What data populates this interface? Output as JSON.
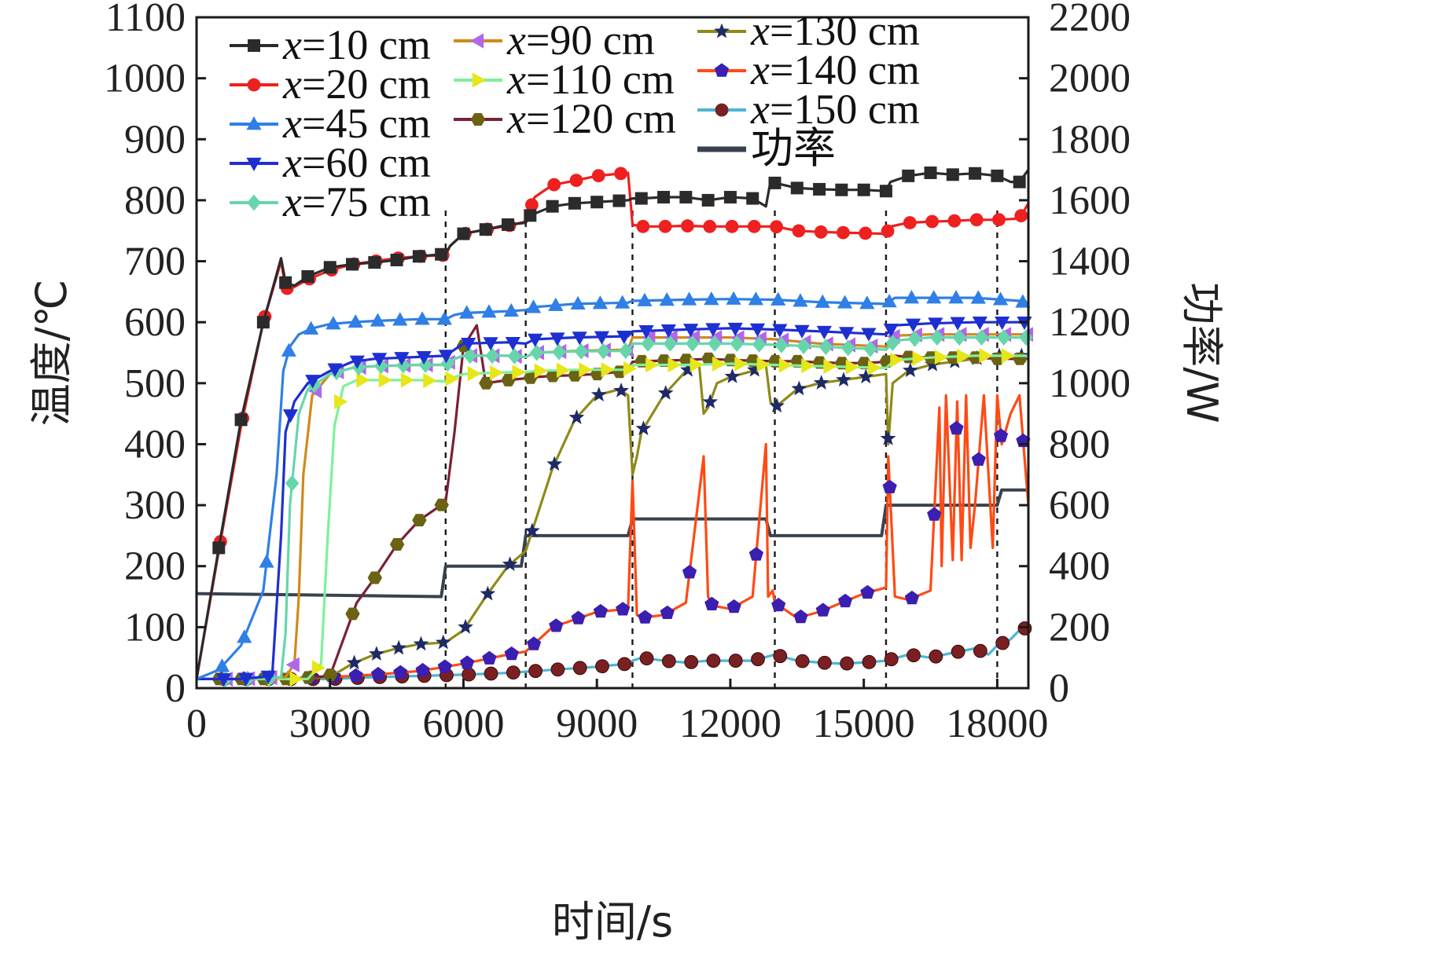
{
  "chart_data": {
    "type": "line",
    "xlabel": "时间/s",
    "ylabel": "温度/℃",
    "y2label": "功率/W",
    "xlim": [
      0,
      18700
    ],
    "ylim": [
      0,
      1100
    ],
    "y2lim": [
      0,
      2200
    ],
    "xticks": [
      "0",
      "3000",
      "6000",
      "9000",
      "12000",
      "15000",
      "18000"
    ],
    "xtick_values": [
      0,
      3000,
      6000,
      9000,
      12000,
      15000,
      18000
    ],
    "yticks": [
      "0",
      "100",
      "200",
      "300",
      "400",
      "500",
      "600",
      "700",
      "800",
      "900",
      "1000",
      "1100"
    ],
    "ytick_values": [
      0,
      100,
      200,
      300,
      400,
      500,
      600,
      700,
      800,
      900,
      1000,
      1100
    ],
    "y2ticks": [
      "0",
      "200",
      "400",
      "600",
      "800",
      "1000",
      "1200",
      "1400",
      "1600",
      "1800",
      "2000",
      "2200"
    ],
    "y2tick_values": [
      0,
      200,
      400,
      600,
      800,
      1000,
      1200,
      1400,
      1600,
      1800,
      2000,
      2200
    ],
    "grid": false,
    "legend_position": "top",
    "vlines": [
      5600,
      7400,
      9800,
      13000,
      15500,
      18000
    ],
    "series": [
      {
        "name": "x=10 cm",
        "prefix": "x",
        "suffix": "=10 cm",
        "axis": "left",
        "color": "#2b2b2b",
        "marker": "square",
        "x": [
          0,
          500,
          1000,
          1500,
          1900,
          2000,
          2200,
          2500,
          3000,
          3500,
          4000,
          4500,
          5000,
          5600,
          5700,
          6000,
          6500,
          7000,
          7400,
          7500,
          8000,
          8500,
          9000,
          9700,
          9800,
          10000,
          10500,
          11000,
          11500,
          12000,
          12500,
          12800,
          12900,
          13500,
          14000,
          14500,
          15000,
          15500,
          15600,
          16000,
          16500,
          17000,
          17500,
          18000,
          18300,
          18500,
          18700
        ],
        "y": [
          15,
          230,
          440,
          600,
          705,
          665,
          660,
          675,
          690,
          695,
          698,
          702,
          708,
          712,
          725,
          745,
          752,
          760,
          763,
          775,
          790,
          795,
          797,
          800,
          803,
          803,
          805,
          805,
          800,
          805,
          803,
          790,
          830,
          820,
          818,
          817,
          817,
          815,
          830,
          840,
          845,
          842,
          844,
          840,
          830,
          830,
          850
        ]
      },
      {
        "name": "x=20 cm",
        "prefix": "x",
        "suffix": "=20 cm",
        "axis": "left",
        "color": "#ee2020",
        "marker": "circle",
        "x": [
          0,
          500,
          1000,
          1500,
          1900,
          2000,
          2200,
          2500,
          3000,
          3500,
          4000,
          4500,
          5000,
          5600,
          5700,
          6000,
          6500,
          7000,
          7400,
          7600,
          8000,
          8500,
          9000,
          9700,
          9800,
          10000,
          10500,
          11000,
          11500,
          12000,
          12500,
          13000,
          13500,
          14000,
          14500,
          15000,
          15500,
          15600,
          16000,
          16500,
          17000,
          17500,
          18000,
          18500,
          18700
        ],
        "y": [
          15,
          225,
          430,
          600,
          700,
          655,
          658,
          670,
          685,
          695,
          700,
          705,
          708,
          710,
          725,
          745,
          752,
          758,
          765,
          805,
          825,
          832,
          840,
          845,
          760,
          757,
          757,
          758,
          757,
          757,
          757,
          757,
          750,
          748,
          747,
          746,
          745,
          757,
          763,
          765,
          766,
          768,
          768,
          770,
          795
        ]
      },
      {
        "name": "x=45 cm",
        "prefix": "x",
        "suffix": "=45 cm",
        "axis": "left",
        "color": "#2f7fe6",
        "marker": "triangle-up",
        "x": [
          0,
          500,
          1000,
          1500,
          1800,
          1950,
          2100,
          2300,
          2600,
          3000,
          3500,
          4000,
          5000,
          5600,
          5800,
          6000,
          7000,
          7400,
          7600,
          8500,
          9700,
          9800,
          11000,
          12000,
          13000,
          14000,
          15500,
          15700,
          16500,
          17500,
          18500,
          18700
        ],
        "y": [
          15,
          30,
          70,
          160,
          350,
          520,
          560,
          580,
          590,
          597,
          600,
          602,
          605,
          605,
          612,
          615,
          618,
          620,
          625,
          630,
          632,
          635,
          637,
          638,
          637,
          633,
          630,
          640,
          640,
          640,
          635,
          630
        ]
      },
      {
        "name": "x=60 cm",
        "prefix": "x",
        "suffix": "=60 cm",
        "axis": "left",
        "color": "#1e2fd2",
        "marker": "triangle-down",
        "x": [
          0,
          1000,
          1700,
          1900,
          2000,
          2200,
          2500,
          3000,
          3500,
          4000,
          5000,
          5600,
          5800,
          6000,
          7000,
          7400,
          7600,
          8500,
          9700,
          9800,
          11000,
          12000,
          13000,
          14000,
          15500,
          15700,
          16500,
          17500,
          18500,
          18700
        ],
        "y": [
          15,
          15,
          20,
          250,
          420,
          470,
          500,
          520,
          535,
          540,
          543,
          545,
          555,
          565,
          567,
          565,
          572,
          575,
          577,
          585,
          588,
          590,
          588,
          585,
          580,
          595,
          598,
          600,
          600,
          600
        ]
      },
      {
        "name": "x=75 cm",
        "prefix": "x",
        "suffix": "=75 cm",
        "axis": "left",
        "color": "#66d6aa",
        "marker": "diamond",
        "x": [
          0,
          1000,
          1900,
          2000,
          2100,
          2300,
          2500,
          3000,
          3500,
          4000,
          5000,
          5600,
          5800,
          6000,
          7000,
          7400,
          7600,
          8500,
          9700,
          9800,
          11000,
          12000,
          13000,
          14000,
          15500,
          15700,
          16500,
          17500,
          18500,
          18700
        ],
        "y": [
          15,
          15,
          18,
          90,
          300,
          450,
          490,
          515,
          525,
          528,
          530,
          530,
          540,
          545,
          545,
          543,
          550,
          552,
          553,
          565,
          565,
          565,
          563,
          560,
          555,
          570,
          575,
          575,
          575,
          575
        ]
      },
      {
        "name": "x=90 cm",
        "prefix": "x",
        "suffix": "=90 cm",
        "axis": "left",
        "color": "#d08a1a",
        "marker": "triangle-left",
        "x": [
          0,
          1000,
          2000,
          2200,
          2300,
          2400,
          2600,
          3000,
          3500,
          4000,
          5000,
          5600,
          5800,
          6000,
          7000,
          7400,
          7600,
          8500,
          9700,
          9800,
          11000,
          12000,
          13000,
          14000,
          15500,
          15700,
          16500,
          17500,
          18500,
          18700
        ],
        "y": [
          15,
          15,
          18,
          40,
          150,
          350,
          480,
          515,
          525,
          528,
          530,
          530,
          540,
          545,
          545,
          543,
          550,
          553,
          555,
          575,
          575,
          575,
          572,
          565,
          560,
          578,
          580,
          580,
          580,
          580
        ]
      },
      {
        "name": "x=110 cm",
        "prefix": "x",
        "suffix": "=110 cm",
        "axis": "left",
        "color": "#7ef09a",
        "marker": "triangle-right",
        "x": [
          0,
          1000,
          2000,
          2500,
          2800,
          2950,
          3100,
          3300,
          3600,
          4000,
          5000,
          5600,
          5800,
          6000,
          7000,
          7400,
          7600,
          8500,
          9700,
          9800,
          11000,
          12000,
          13000,
          14000,
          15500,
          15700,
          16500,
          17500,
          18500,
          18700
        ],
        "y": [
          15,
          15,
          15,
          15,
          40,
          250,
          430,
          495,
          505,
          505,
          505,
          503,
          510,
          515,
          518,
          518,
          520,
          522,
          522,
          530,
          530,
          532,
          530,
          528,
          525,
          538,
          542,
          545,
          545,
          545
        ]
      },
      {
        "name": "x=120 cm",
        "prefix": "x",
        "suffix": "=120 cm",
        "axis": "left",
        "color": "#7a2035",
        "marker": "hexagon",
        "x": [
          0,
          1000,
          2000,
          3000,
          3300,
          3600,
          4000,
          4500,
          5000,
          5500,
          5600,
          5800,
          6000,
          6300,
          6500,
          7000,
          7400,
          7600,
          8000,
          8500,
          9000,
          9700,
          9800,
          10000,
          10500,
          11000,
          11500,
          12000,
          12500,
          13000,
          13500,
          14000,
          14500,
          15000,
          15500,
          15700,
          16000,
          16500,
          17000,
          17500,
          18000,
          18500,
          18700
        ],
        "y": [
          15,
          15,
          15,
          20,
          80,
          140,
          180,
          235,
          275,
          300,
          305,
          420,
          560,
          595,
          500,
          505,
          508,
          510,
          512,
          513,
          515,
          520,
          535,
          536,
          537,
          538,
          540,
          538,
          537,
          536,
          536,
          534,
          533,
          533,
          535,
          545,
          543,
          542,
          542,
          542,
          540,
          540,
          540
        ]
      },
      {
        "name": "x=130 cm",
        "prefix": "x",
        "suffix": "=130 cm",
        "axis": "left",
        "color": "#8f8a1a",
        "marker": "star",
        "x": [
          0,
          1000,
          2000,
          3000,
          3500,
          4000,
          4500,
          5000,
          5600,
          5800,
          6000,
          6500,
          7000,
          7400,
          7600,
          8000,
          8500,
          9000,
          9500,
          9700,
          9800,
          9900,
          10000,
          10500,
          11000,
          11300,
          11400,
          11500,
          11700,
          12000,
          12500,
          12800,
          12900,
          13000,
          13500,
          14000,
          14500,
          15000,
          15500,
          15550,
          15650,
          16000,
          16500,
          17000,
          17500,
          18000,
          18500,
          18700
        ],
        "y": [
          15,
          15,
          15,
          18,
          40,
          55,
          65,
          72,
          75,
          85,
          95,
          150,
          200,
          225,
          270,
          360,
          440,
          480,
          490,
          480,
          350,
          380,
          420,
          480,
          520,
          530,
          450,
          460,
          500,
          510,
          520,
          530,
          470,
          460,
          490,
          500,
          505,
          510,
          515,
          400,
          500,
          520,
          530,
          535,
          540,
          545,
          545,
          545
        ]
      },
      {
        "name": "x=140 cm",
        "prefix": "x",
        "suffix": "=140 cm",
        "axis": "left",
        "color": "#ff4a14",
        "marker": "pentagon",
        "x": [
          0,
          1000,
          2000,
          3000,
          4000,
          5000,
          5600,
          6000,
          7000,
          7400,
          8000,
          9000,
          9700,
          9800,
          9900,
          10000,
          10500,
          11000,
          11400,
          11500,
          11600,
          12000,
          12500,
          12800,
          12850,
          12950,
          13000,
          13500,
          14000,
          14500,
          15000,
          15500,
          15550,
          15700,
          16000,
          16500,
          16700,
          16750,
          16850,
          17000,
          17100,
          17200,
          17300,
          17400,
          17500,
          17700,
          17900,
          18000,
          18100,
          18300,
          18500,
          18700
        ],
        "y": [
          15,
          15,
          15,
          18,
          22,
          28,
          35,
          40,
          55,
          60,
          100,
          125,
          130,
          340,
          120,
          115,
          120,
          140,
          380,
          150,
          135,
          130,
          150,
          400,
          150,
          160,
          140,
          115,
          125,
          140,
          155,
          165,
          380,
          150,
          145,
          160,
          460,
          200,
          480,
          210,
          470,
          210,
          480,
          230,
          300,
          480,
          230,
          480,
          400,
          450,
          480,
          300
        ]
      },
      {
        "name": "x=150 cm",
        "prefix": "x",
        "suffix": "=150 cm",
        "axis": "left",
        "color": "#4bb5d6",
        "marker": "sphere",
        "x": [
          0,
          2000,
          3000,
          4000,
          5000,
          6000,
          7000,
          8000,
          9000,
          9700,
          9800,
          10000,
          10500,
          11000,
          11500,
          12000,
          12500,
          13000,
          13500,
          14000,
          14500,
          15000,
          15500,
          16000,
          16500,
          17000,
          17500,
          17800,
          18000,
          18300,
          18500,
          18700
        ],
        "y": [
          15,
          15,
          15,
          18,
          20,
          22,
          25,
          30,
          35,
          40,
          45,
          50,
          45,
          42,
          45,
          45,
          45,
          55,
          45,
          42,
          40,
          42,
          45,
          55,
          50,
          58,
          65,
          55,
          70,
          80,
          95,
          100
        ]
      },
      {
        "name": "功率",
        "axis": "right",
        "color": "#3a4250",
        "marker": "none",
        "x": [
          0,
          5500,
          5600,
          7300,
          7400,
          9700,
          9800,
          12800,
          12900,
          15400,
          15500,
          18000,
          18100,
          18700
        ],
        "y": [
          310,
          300,
          400,
          400,
          500,
          500,
          555,
          555,
          500,
          500,
          600,
          600,
          650,
          650
        ]
      }
    ]
  }
}
